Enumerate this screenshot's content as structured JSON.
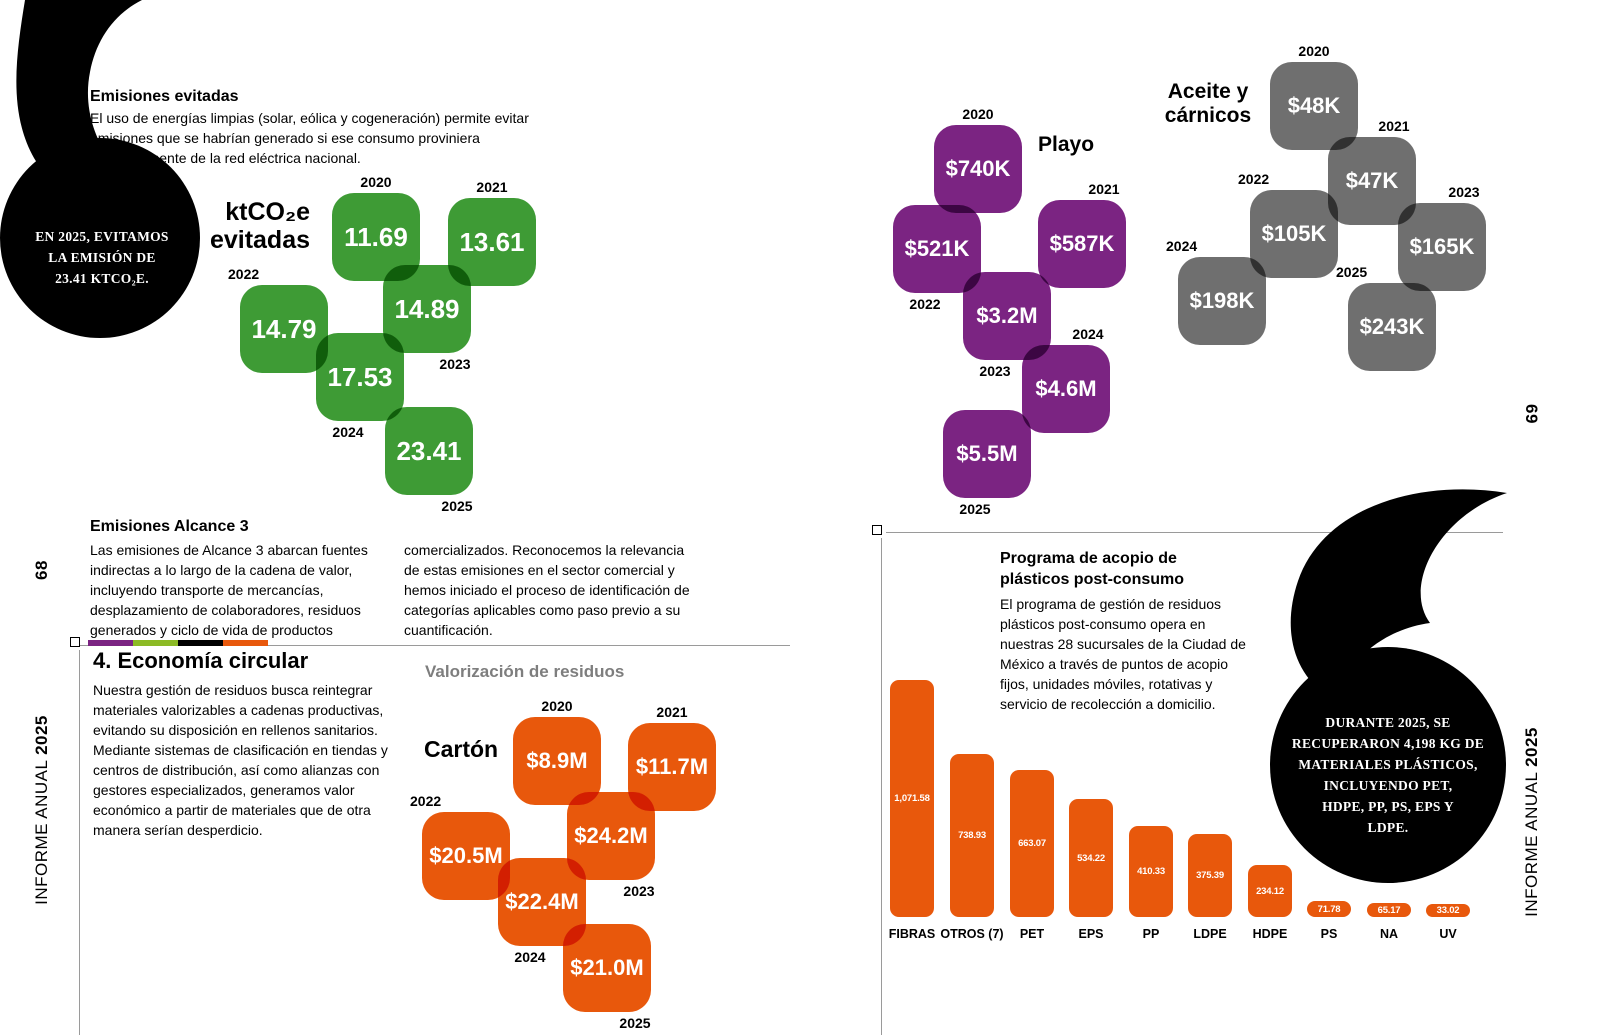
{
  "report": {
    "footer_label": "INFORME ANUAL",
    "footer_year": "2025",
    "page_left_number": "68",
    "page_right_number": "69"
  },
  "left_page": {
    "emisiones_evitadas": {
      "title": "Emisiones evitadas",
      "body": "El uso de energías limpias (solar, eólica y cogeneración) permite evitar emisiones que se habrían generado si ese consumo proviniera exclusivamente de la red eléctrica nacional.",
      "callout_lines": [
        "EN 2025, EVITAMOS",
        "LA EMISIÓN DE",
        "23.41 KTCO₂E."
      ]
    },
    "alcance3": {
      "title": "Emisiones Alcance 3",
      "col1": "Las emisiones de Alcance 3 abarcan fuentes indirectas a lo largo de la cadena de valor, incluyendo transporte de mercancías, desplazamiento de colaboradores, residuos generados y ciclo de vida de productos",
      "col2": "comercializados. Reconocemos la relevancia de estas emisiones en el sector comercial y hemos iniciado el proceso de identificación de categorías aplicables como paso previo a su cuantificación."
    },
    "economia_circular": {
      "title": "4. Economía circular",
      "body": "Nuestra gestión de residuos busca reintegrar materiales valorizables a cadenas productivas, evitando su disposición en rellenos sanitarios. Mediante sistemas de clasificación en tiendas y centros de distribución, así como alianzas con gestores especializados, generamos valor económico a partir de materiales que de otra manera serían desperdicio.",
      "section_title": "Valorización de residuos"
    }
  },
  "right_page": {
    "acopio": {
      "title": "Programa de acopio de plásticos post-consumo",
      "body": "El programa de gestión de residuos plásticos post-consumo opera en nuestras 28 sucursales de la Ciudad de México a través de puntos de acopio fijos, unidades móviles, rotativas y servicio de recolección a domicilio.",
      "callout_lines": [
        "DURANTE 2025, SE",
        "RECUPERARON 4,198 KG DE",
        "MATERIALES PLÁSTICOS,",
        "INCLUYENDO PET,",
        "HDPE, PP, PS, EPS Y",
        "LDPE."
      ]
    }
  },
  "colors": {
    "green": "#3E9B35",
    "orange": "#E8580C",
    "purple": "#7B2482",
    "gray": "#6F6F6F",
    "divider_green": "#8CBA25",
    "black": "#000000"
  },
  "divider_colors": [
    "#7B2482",
    "#8CBA25",
    "#000000",
    "#E8580C"
  ],
  "chart_data": [
    {
      "type": "tile",
      "title": "ktCO₂e evitadas",
      "color": "#3E9B35",
      "categories": [
        "2020",
        "2021",
        "2022",
        "2023",
        "2024",
        "2025"
      ],
      "values": [
        11.69,
        13.61,
        14.79,
        14.89,
        17.53,
        23.41
      ],
      "labels": [
        "11.69",
        "13.61",
        "14.79",
        "14.89",
        "17.53",
        "23.41"
      ],
      "unit": "ktCO₂e"
    },
    {
      "type": "tile",
      "title": "Cartón",
      "subtitle": "Valorización de residuos",
      "color": "#E8580C",
      "categories": [
        "2020",
        "2021",
        "2022",
        "2023",
        "2024",
        "2025"
      ],
      "values": [
        8.9,
        11.7,
        20.5,
        24.2,
        22.4,
        21.0
      ],
      "labels": [
        "$8.9M",
        "$11.7M",
        "$20.5M",
        "$24.2M",
        "$22.4M",
        "$21.0M"
      ],
      "unit": "MXN millions"
    },
    {
      "type": "tile",
      "title": "Playo",
      "color": "#7B2482",
      "categories": [
        "2020",
        "2021",
        "2022",
        "2023",
        "2024",
        "2025"
      ],
      "values": [
        740000,
        587000,
        521000,
        3200000,
        4600000,
        5500000
      ],
      "labels": [
        "$740K",
        "$587K",
        "$521K",
        "$3.2M",
        "$4.6M",
        "$5.5M"
      ],
      "unit": "MXN"
    },
    {
      "type": "tile",
      "title": "Aceite y cárnicos",
      "color": "#6F6F6F",
      "categories": [
        "2020",
        "2021",
        "2022",
        "2023",
        "2024",
        "2025"
      ],
      "values": [
        48000,
        47000,
        105000,
        165000,
        198000,
        243000
      ],
      "labels": [
        "$48K",
        "$47K",
        "$105K",
        "$165K",
        "$198K",
        "$243K"
      ],
      "unit": "MXN"
    },
    {
      "type": "bar",
      "title": "Programa de acopio de plásticos post-consumo",
      "categories": [
        "FIBRAS",
        "OTROS (7)",
        "PET",
        "EPS",
        "PP",
        "LDPE",
        "HDPE",
        "PS",
        "NA",
        "UV"
      ],
      "values": [
        1071.58,
        738.93,
        663.07,
        534.22,
        410.33,
        375.39,
        234.12,
        71.78,
        65.17,
        33.02
      ],
      "value_labels": [
        "1,071.58",
        "738.93",
        "663.07",
        "534.22",
        "410.33",
        "375.39",
        "234.12",
        "71.78",
        "65.17",
        "33.02"
      ],
      "unit": "kg",
      "ylim": [
        0,
        1071.58
      ]
    }
  ]
}
